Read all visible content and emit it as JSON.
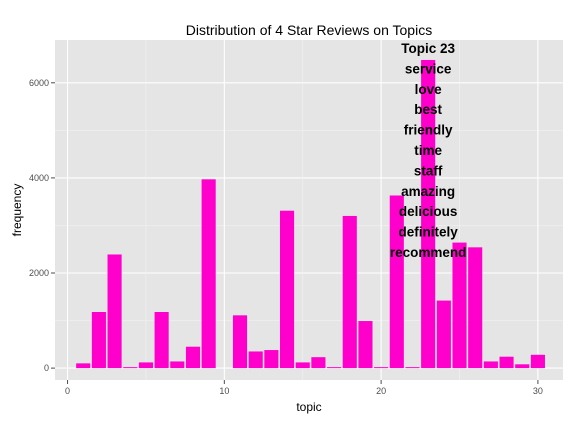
{
  "chart_data": {
    "type": "bar",
    "title": "Distribution of 4 Star Reviews on Topics",
    "xlabel": "topic",
    "ylabel": "frequency",
    "x": [
      1,
      2,
      3,
      4,
      5,
      6,
      7,
      8,
      9,
      11,
      12,
      13,
      14,
      15,
      16,
      17,
      18,
      19,
      20,
      21,
      22,
      23,
      24,
      25,
      26,
      27,
      28,
      29,
      30
    ],
    "values": [
      100,
      1180,
      2390,
      20,
      120,
      1180,
      140,
      450,
      3970,
      1110,
      350,
      380,
      3310,
      120,
      230,
      20,
      3200,
      990,
      20,
      3630,
      20,
      6480,
      1420,
      2640,
      2540,
      140,
      240,
      80,
      280
    ],
    "xlim": [
      -0.8,
      31.6
    ],
    "ylim": [
      -250,
      6900
    ],
    "x_ticks": [
      0,
      10,
      20,
      30
    ],
    "x_tick_labels": [
      "0",
      "10",
      "20",
      "30"
    ],
    "y_ticks": [
      0,
      2000,
      4000,
      6000
    ],
    "y_tick_labels": [
      "0",
      "2000",
      "4000",
      "6000"
    ],
    "grid": true,
    "bar_color": "#FF00CC",
    "panel_color": "#E5E5E5",
    "annotation": {
      "x": 23,
      "lines": [
        "Topic 23",
        "service",
        "love",
        "best",
        "friendly",
        "time",
        "staff",
        "amazing",
        "delicious",
        "definitely",
        "recommend"
      ]
    }
  }
}
